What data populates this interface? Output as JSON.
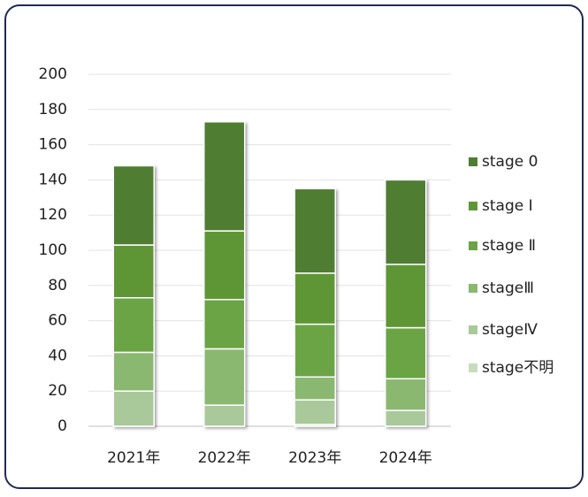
{
  "chart_data": {
    "type": "stacked_bar",
    "categories": [
      "2021年",
      "2022年",
      "2023年",
      "2024年"
    ],
    "series": [
      {
        "name": "stage不明",
        "color": "#c6dcbb",
        "values": [
          0,
          0,
          1,
          0
        ]
      },
      {
        "name": "stageⅣ",
        "color": "#a9c99b",
        "values": [
          20,
          12,
          14,
          9
        ]
      },
      {
        "name": "stageⅢ",
        "color": "#8ab870",
        "values": [
          22,
          32,
          13,
          18
        ]
      },
      {
        "name": "stage Ⅱ",
        "color": "#6aa445",
        "values": [
          31,
          28,
          30,
          29
        ]
      },
      {
        "name": "stage Ⅰ",
        "color": "#5e9636",
        "values": [
          30,
          39,
          29,
          36
        ]
      },
      {
        "name": "stage 0",
        "color": "#4f7d31",
        "values": [
          45,
          62,
          48,
          48
        ]
      }
    ],
    "ylim": [
      0,
      200
    ],
    "yticks": [
      0,
      20,
      40,
      60,
      80,
      100,
      120,
      140,
      160,
      180,
      200
    ],
    "grid": true,
    "legend": "right"
  }
}
